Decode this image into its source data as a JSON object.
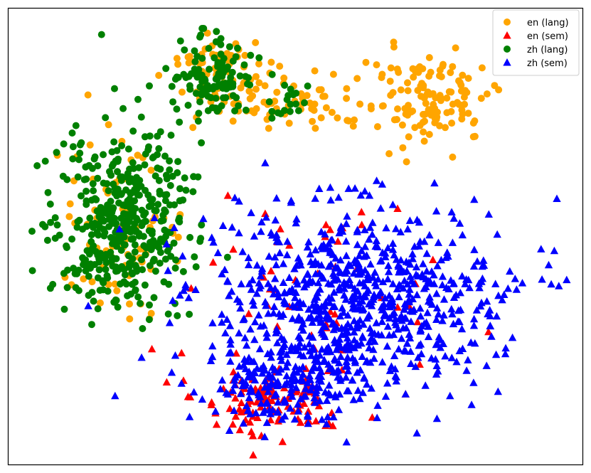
{
  "chart_data": {
    "type": "scatter",
    "title": "",
    "xlabel": "",
    "ylabel": "",
    "axes_ticks": "none",
    "grid": false,
    "legend_placement": "top-right",
    "series": [
      {
        "name": "en (lang)",
        "marker": "circle",
        "color": "#FFA500",
        "clusters": [
          {
            "center": [
              400,
              140
            ],
            "spread": [
              120,
              40
            ],
            "count": 70
          },
          {
            "center": [
              600,
              140
            ],
            "spread": [
              90,
              70
            ],
            "count": 130
          },
          {
            "center": [
              310,
              100
            ],
            "spread": [
              60,
              50
            ],
            "count": 60
          },
          {
            "center": [
              170,
              320
            ],
            "spread": [
              90,
              110
            ],
            "count": 80
          }
        ]
      },
      {
        "name": "en (sem)",
        "marker": "triangle",
        "color": "#FF0000",
        "clusters": [
          {
            "center": [
              380,
              560
            ],
            "spread": [
              110,
              50
            ],
            "count": 110
          },
          {
            "center": [
              470,
              420
            ],
            "spread": [
              180,
              140
            ],
            "count": 50
          }
        ]
      },
      {
        "name": "zh (lang)",
        "marker": "circle",
        "color": "#008000",
        "clusters": [
          {
            "center": [
              170,
              310
            ],
            "spread": [
              95,
              130
            ],
            "count": 430
          },
          {
            "center": [
              300,
              110
            ],
            "spread": [
              60,
              55
            ],
            "count": 120
          },
          {
            "center": [
              410,
              140
            ],
            "spread": [
              40,
              25
            ],
            "count": 18
          }
        ]
      },
      {
        "name": "zh (sem)",
        "marker": "triangle",
        "color": "#0000FF",
        "clusters": [
          {
            "center": [
              500,
              420
            ],
            "spread": [
              200,
              130
            ],
            "count": 760
          },
          {
            "center": [
              400,
              540
            ],
            "spread": [
              110,
              60
            ],
            "count": 200
          }
        ]
      }
    ]
  }
}
